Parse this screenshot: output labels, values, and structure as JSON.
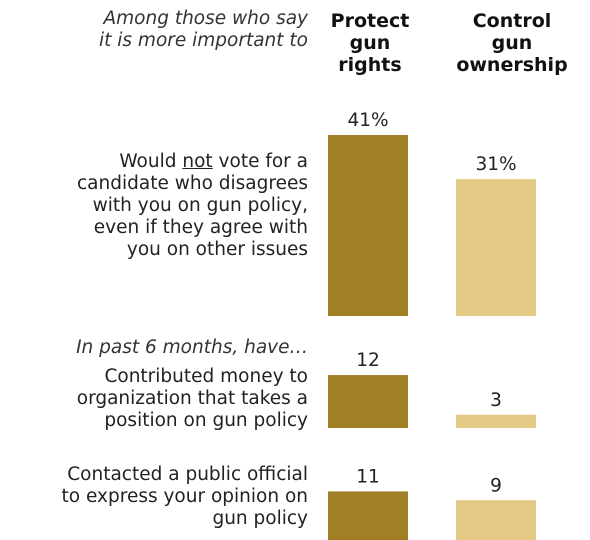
{
  "header": {
    "intro_line1": "Among those who say",
    "intro_line2": "it is more important to",
    "col1": [
      "Protect",
      "gun",
      "rights"
    ],
    "col2": [
      "Control",
      "gun",
      "ownership"
    ]
  },
  "labels": {
    "row1_l1_pre": "Would ",
    "row1_l1_under": "not",
    "row1_l1_post": " vote for a",
    "row1_l2": "candidate who disagrees",
    "row1_l3": "with you on gun policy,",
    "row1_l4": "even if they agree with",
    "row1_l5": "you on other issues",
    "section": "In past 6 months, have…",
    "row2_l1": "Contributed money to",
    "row2_l2": "organization that takes a",
    "row2_l3": "position on gun policy",
    "row3_l1": "Contacted a public official",
    "row3_l2": "to express your opinion on",
    "row3_l3": "gun policy"
  },
  "colors": {
    "protect": "#a07f26",
    "control": "#e3c983"
  },
  "chart_data": {
    "type": "bar",
    "categories": [
      "Would not vote for a candidate who disagrees with you on gun policy, even if they agree with you on other issues",
      "Contributed money to organization that takes a position on gun policy",
      "Contacted a public official to express your opinion on gun policy"
    ],
    "series": [
      {
        "name": "Protect gun rights",
        "values": [
          41,
          12,
          11
        ]
      },
      {
        "name": "Control gun ownership",
        "values": [
          31,
          3,
          9
        ]
      }
    ],
    "value_labels": [
      [
        "41%",
        "12",
        "11"
      ],
      [
        "31%",
        "3",
        "9"
      ]
    ],
    "ylim": [
      0,
      41
    ]
  }
}
